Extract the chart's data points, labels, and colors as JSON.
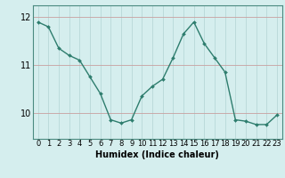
{
  "x": [
    0,
    1,
    2,
    3,
    4,
    5,
    6,
    7,
    8,
    9,
    10,
    11,
    12,
    13,
    14,
    15,
    16,
    17,
    18,
    19,
    20,
    21,
    22,
    23
  ],
  "y": [
    11.9,
    11.8,
    11.35,
    11.2,
    11.1,
    10.75,
    10.4,
    9.85,
    9.78,
    9.85,
    10.35,
    10.55,
    10.7,
    11.15,
    11.65,
    11.9,
    11.45,
    11.15,
    10.85,
    9.85,
    9.82,
    9.75,
    9.75,
    9.95
  ],
  "line_color": "#2e7d6e",
  "marker": "D",
  "marker_size": 2.0,
  "bg_color": "#d5eeee",
  "grid_x_color": "#b8d8d8",
  "grid_y_color": "#c8a0a0",
  "xlabel": "Humidex (Indice chaleur)",
  "xlabel_fontsize": 7,
  "ylabel_ticks": [
    10,
    11,
    12
  ],
  "ylim": [
    9.45,
    12.25
  ],
  "xlim": [
    -0.5,
    23.5
  ],
  "tick_fontsize": 6,
  "line_width": 1.0,
  "spine_color": "#4a8a80"
}
